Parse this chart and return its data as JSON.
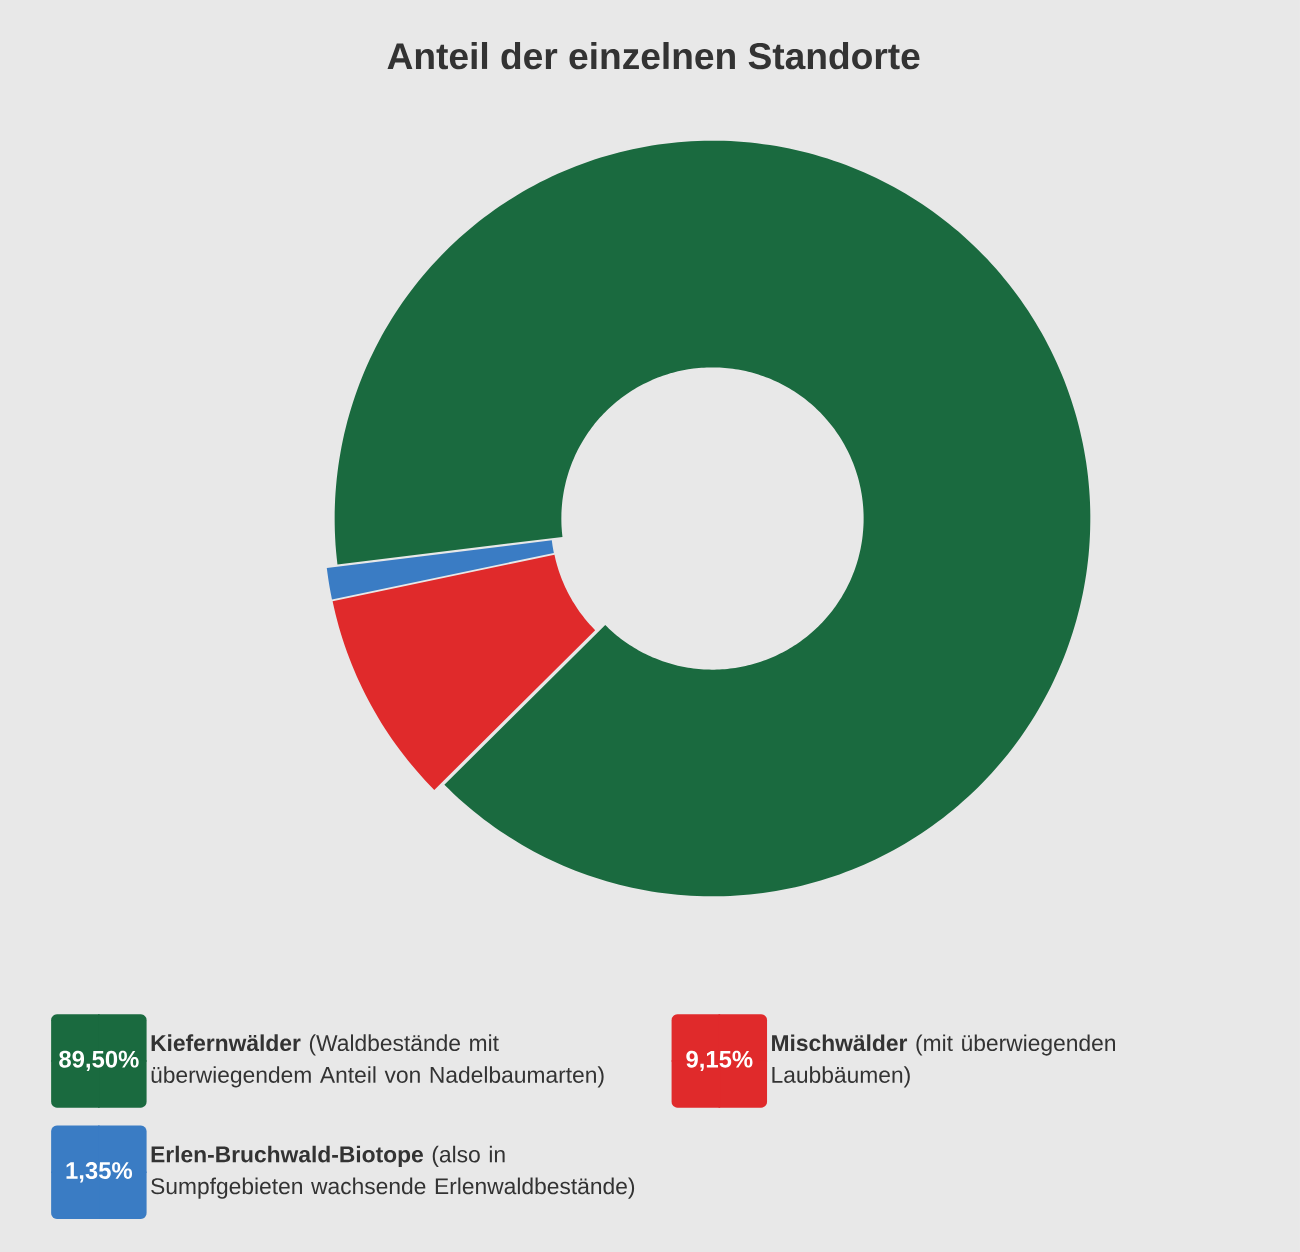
{
  "chart_data": {
    "type": "donut",
    "title": "Anteil der einzelnen Standorte",
    "categories": [
      "**Kiefernwälder** (Waldbestände mit überwiegendem Anteil von Nadelbaumarten)",
      "**Mischwälder** (mit überwiegenden Laubbäumen)",
      "**Erlen-Bruchwald-Biotope** (also in Sumpfgebieten wachsende Erlenwaldbestände)"
    ],
    "values": [
      89.5,
      9.15,
      1.35
    ],
    "value_labels": [
      "89,50%",
      "9,15%",
      "1,35%"
    ],
    "colors": [
      "#1a6a3f",
      "#e02a2b",
      "#3a7cc4"
    ],
    "legend": "bottom"
  }
}
